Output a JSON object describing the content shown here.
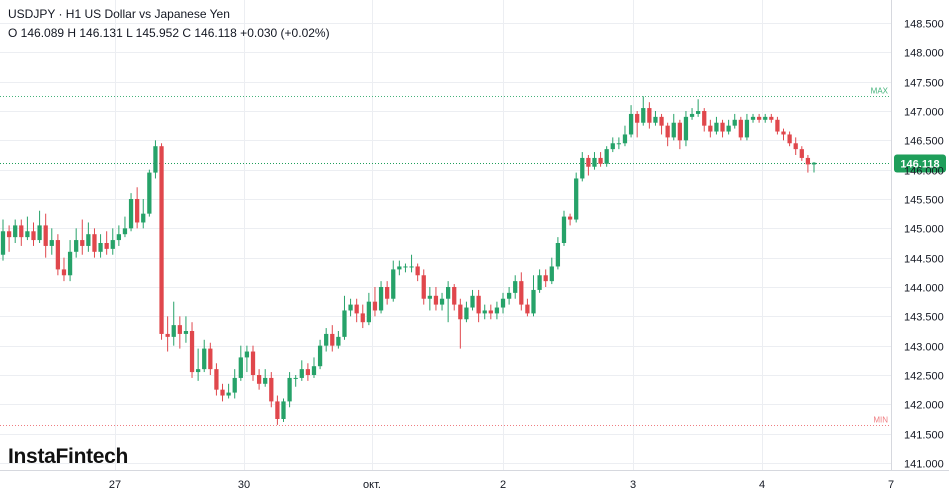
{
  "header": {
    "title": "USDJPY · H1 US Dollar vs Japanese Yen",
    "ohlc": "O 146.089 H 146.131 L 145.952 C 146.118  +0.030 (+0.02%)"
  },
  "logo": "InstaFintech",
  "colors": {
    "up": "#26a269",
    "down": "#e0474c",
    "grid": "#eceef2",
    "text": "#131722",
    "price_line": "#1e9e5a",
    "max_line": "#44b27a",
    "min_line": "#ef7c80"
  },
  "chart_data": {
    "type": "candlestick",
    "symbol": "USDJPY",
    "timeframe": "H1",
    "ylim": [
      140.85,
      148.75
    ],
    "y_ticks": [
      "148.500",
      "148.000",
      "147.500",
      "147.000",
      "146.500",
      "146.000",
      "145.500",
      "145.000",
      "144.500",
      "144.000",
      "143.500",
      "143.000",
      "142.500",
      "142.000",
      "141.500",
      "141.000"
    ],
    "x_ticks": [
      "27",
      "30",
      "окт.",
      "2",
      "3",
      "4",
      "7"
    ],
    "current_price": 146.118,
    "current_price_label": "146.118",
    "max_level": 147.25,
    "max_label": "MAX",
    "min_level": 141.65,
    "min_label": "MIN",
    "candles": [
      [
        144.55,
        144.95,
        145.15,
        144.45
      ],
      [
        144.95,
        144.85,
        145.05,
        144.6
      ],
      [
        144.85,
        145.05,
        145.15,
        144.75
      ],
      [
        145.05,
        144.85,
        145.15,
        144.7
      ],
      [
        144.85,
        144.95,
        145.2,
        144.8
      ],
      [
        144.95,
        144.8,
        145.1,
        144.7
      ],
      [
        144.8,
        145.05,
        145.3,
        144.75
      ],
      [
        145.05,
        144.7,
        145.25,
        144.5
      ],
      [
        144.7,
        144.8,
        145.0,
        144.55
      ],
      [
        144.8,
        144.3,
        144.9,
        144.2
      ],
      [
        144.3,
        144.2,
        144.5,
        144.1
      ],
      [
        144.2,
        144.6,
        144.8,
        144.1
      ],
      [
        144.6,
        144.8,
        145.0,
        144.5
      ],
      [
        144.8,
        144.7,
        145.15,
        144.55
      ],
      [
        144.7,
        144.9,
        145.1,
        144.6
      ],
      [
        144.9,
        144.6,
        145.0,
        144.5
      ],
      [
        144.6,
        144.75,
        144.9,
        144.5
      ],
      [
        144.75,
        144.65,
        144.95,
        144.55
      ],
      [
        144.65,
        144.8,
        145.0,
        144.55
      ],
      [
        144.8,
        144.9,
        145.05,
        144.7
      ],
      [
        144.9,
        145.0,
        145.2,
        144.85
      ],
      [
        145.0,
        145.5,
        145.6,
        144.95
      ],
      [
        145.5,
        145.1,
        145.7,
        145.0
      ],
      [
        145.1,
        145.25,
        145.5,
        145.0
      ],
      [
        145.25,
        145.95,
        146.0,
        145.2
      ],
      [
        145.95,
        146.4,
        146.5,
        145.85
      ],
      [
        146.4,
        143.2,
        146.45,
        143.1
      ],
      [
        143.2,
        143.15,
        143.5,
        142.9
      ],
      [
        143.15,
        143.35,
        143.75,
        143.0
      ],
      [
        143.35,
        143.2,
        143.5,
        142.95
      ],
      [
        143.2,
        143.25,
        143.5,
        143.05
      ],
      [
        143.25,
        142.55,
        143.4,
        142.45
      ],
      [
        142.55,
        142.6,
        142.95,
        142.4
      ],
      [
        142.6,
        142.95,
        143.1,
        142.55
      ],
      [
        142.95,
        142.6,
        143.05,
        142.5
      ],
      [
        142.6,
        142.25,
        142.7,
        142.15
      ],
      [
        142.25,
        142.15,
        142.35,
        142.05
      ],
      [
        142.15,
        142.2,
        142.35,
        142.1
      ],
      [
        142.2,
        142.45,
        142.6,
        142.1
      ],
      [
        142.45,
        142.8,
        143.0,
        142.4
      ],
      [
        142.8,
        142.9,
        143.0,
        142.55
      ],
      [
        142.9,
        142.5,
        143.0,
        142.4
      ],
      [
        142.5,
        142.35,
        142.6,
        142.25
      ],
      [
        142.35,
        142.45,
        142.6,
        142.3
      ],
      [
        142.45,
        142.05,
        142.55,
        141.95
      ],
      [
        142.05,
        141.75,
        142.15,
        141.65
      ],
      [
        141.75,
        142.05,
        142.1,
        141.7
      ],
      [
        142.05,
        142.45,
        142.55,
        141.95
      ],
      [
        142.45,
        142.45,
        142.5,
        142.3
      ],
      [
        142.45,
        142.6,
        142.75,
        142.4
      ],
      [
        142.6,
        142.5,
        142.7,
        142.4
      ],
      [
        142.5,
        142.65,
        142.8,
        142.45
      ],
      [
        142.65,
        143.0,
        143.1,
        142.6
      ],
      [
        143.0,
        143.2,
        143.3,
        142.9
      ],
      [
        143.2,
        143.0,
        143.35,
        142.9
      ],
      [
        143.0,
        143.15,
        143.25,
        142.95
      ],
      [
        143.15,
        143.6,
        143.85,
        143.1
      ],
      [
        143.6,
        143.7,
        143.8,
        143.5
      ],
      [
        143.7,
        143.55,
        143.8,
        143.4
      ],
      [
        143.55,
        143.4,
        143.7,
        143.3
      ],
      [
        143.4,
        143.75,
        143.9,
        143.35
      ],
      [
        143.75,
        143.6,
        144.0,
        143.5
      ],
      [
        143.6,
        144.0,
        144.1,
        143.55
      ],
      [
        144.0,
        143.8,
        144.1,
        143.7
      ],
      [
        143.8,
        144.3,
        144.45,
        143.75
      ],
      [
        144.3,
        144.35,
        144.45,
        144.2
      ],
      [
        144.35,
        144.35,
        144.4,
        144.25
      ],
      [
        144.35,
        144.35,
        144.55,
        144.25
      ],
      [
        144.35,
        144.2,
        144.4,
        144.1
      ],
      [
        144.2,
        143.8,
        144.3,
        143.7
      ],
      [
        143.8,
        143.85,
        144.0,
        143.6
      ],
      [
        143.85,
        143.7,
        144.0,
        143.6
      ],
      [
        143.7,
        143.8,
        143.9,
        143.6
      ],
      [
        143.8,
        144.0,
        144.1,
        143.4
      ],
      [
        144.0,
        143.7,
        144.05,
        143.6
      ],
      [
        143.7,
        143.45,
        143.8,
        142.95
      ],
      [
        143.45,
        143.65,
        143.75,
        143.4
      ],
      [
        143.65,
        143.85,
        143.95,
        143.6
      ],
      [
        143.85,
        143.55,
        143.95,
        143.4
      ],
      [
        143.55,
        143.6,
        143.7,
        143.45
      ],
      [
        143.6,
        143.55,
        143.7,
        143.45
      ],
      [
        143.55,
        143.65,
        143.75,
        143.45
      ],
      [
        143.65,
        143.8,
        143.9,
        143.55
      ],
      [
        143.8,
        143.9,
        144.0,
        143.7
      ],
      [
        143.9,
        144.1,
        144.2,
        143.8
      ],
      [
        144.1,
        143.7,
        144.25,
        143.6
      ],
      [
        143.7,
        143.55,
        143.8,
        143.5
      ],
      [
        143.55,
        143.95,
        144.2,
        143.5
      ],
      [
        143.95,
        144.2,
        144.3,
        143.9
      ],
      [
        144.2,
        144.1,
        144.3,
        144.0
      ],
      [
        144.1,
        144.35,
        144.5,
        144.05
      ],
      [
        144.35,
        144.75,
        144.85,
        144.3
      ],
      [
        144.75,
        145.2,
        145.3,
        144.7
      ],
      [
        145.2,
        145.15,
        145.25,
        145.05
      ],
      [
        145.15,
        145.85,
        145.95,
        145.1
      ],
      [
        145.85,
        146.2,
        146.3,
        145.8
      ],
      [
        146.2,
        146.05,
        146.25,
        145.9
      ],
      [
        146.05,
        146.2,
        146.3,
        146.0
      ],
      [
        146.2,
        146.1,
        146.3,
        146.05
      ],
      [
        146.1,
        146.35,
        146.4,
        146.05
      ],
      [
        146.35,
        146.45,
        146.55,
        146.3
      ],
      [
        146.45,
        146.45,
        146.55,
        146.35
      ],
      [
        146.45,
        146.6,
        146.75,
        146.4
      ],
      [
        146.6,
        146.95,
        147.1,
        146.55
      ],
      [
        146.95,
        146.8,
        147.0,
        146.55
      ],
      [
        146.8,
        147.05,
        147.25,
        146.75
      ],
      [
        147.05,
        146.8,
        147.15,
        146.7
      ],
      [
        146.8,
        146.9,
        147.0,
        146.75
      ],
      [
        146.9,
        146.75,
        146.95,
        146.6
      ],
      [
        146.75,
        146.55,
        146.8,
        146.4
      ],
      [
        146.55,
        146.8,
        146.95,
        146.5
      ],
      [
        146.8,
        146.5,
        146.85,
        146.35
      ],
      [
        146.5,
        146.9,
        147.0,
        146.4
      ],
      [
        146.9,
        146.95,
        147.05,
        146.85
      ],
      [
        146.95,
        147.0,
        147.2,
        146.9
      ],
      [
        147.0,
        146.75,
        147.05,
        146.65
      ],
      [
        146.75,
        146.65,
        146.85,
        146.55
      ],
      [
        146.65,
        146.8,
        146.9,
        146.6
      ],
      [
        146.8,
        146.65,
        146.85,
        146.55
      ],
      [
        146.65,
        146.75,
        146.85,
        146.6
      ],
      [
        146.75,
        146.85,
        146.95,
        146.7
      ],
      [
        146.85,
        146.55,
        146.9,
        146.5
      ],
      [
        146.55,
        146.85,
        146.95,
        146.5
      ],
      [
        146.85,
        146.9,
        146.95,
        146.8
      ],
      [
        146.9,
        146.85,
        146.95,
        146.8
      ],
      [
        146.85,
        146.9,
        146.95,
        146.8
      ],
      [
        146.9,
        146.85,
        146.95,
        146.8
      ],
      [
        146.85,
        146.65,
        146.9,
        146.6
      ],
      [
        146.65,
        146.6,
        146.7,
        146.5
      ],
      [
        146.6,
        146.45,
        146.65,
        146.4
      ],
      [
        146.45,
        146.35,
        146.55,
        146.25
      ],
      [
        146.35,
        146.2,
        146.4,
        146.15
      ],
      [
        146.2,
        146.09,
        146.25,
        145.95
      ],
      [
        146.089,
        146.118,
        146.131,
        145.952
      ]
    ]
  }
}
